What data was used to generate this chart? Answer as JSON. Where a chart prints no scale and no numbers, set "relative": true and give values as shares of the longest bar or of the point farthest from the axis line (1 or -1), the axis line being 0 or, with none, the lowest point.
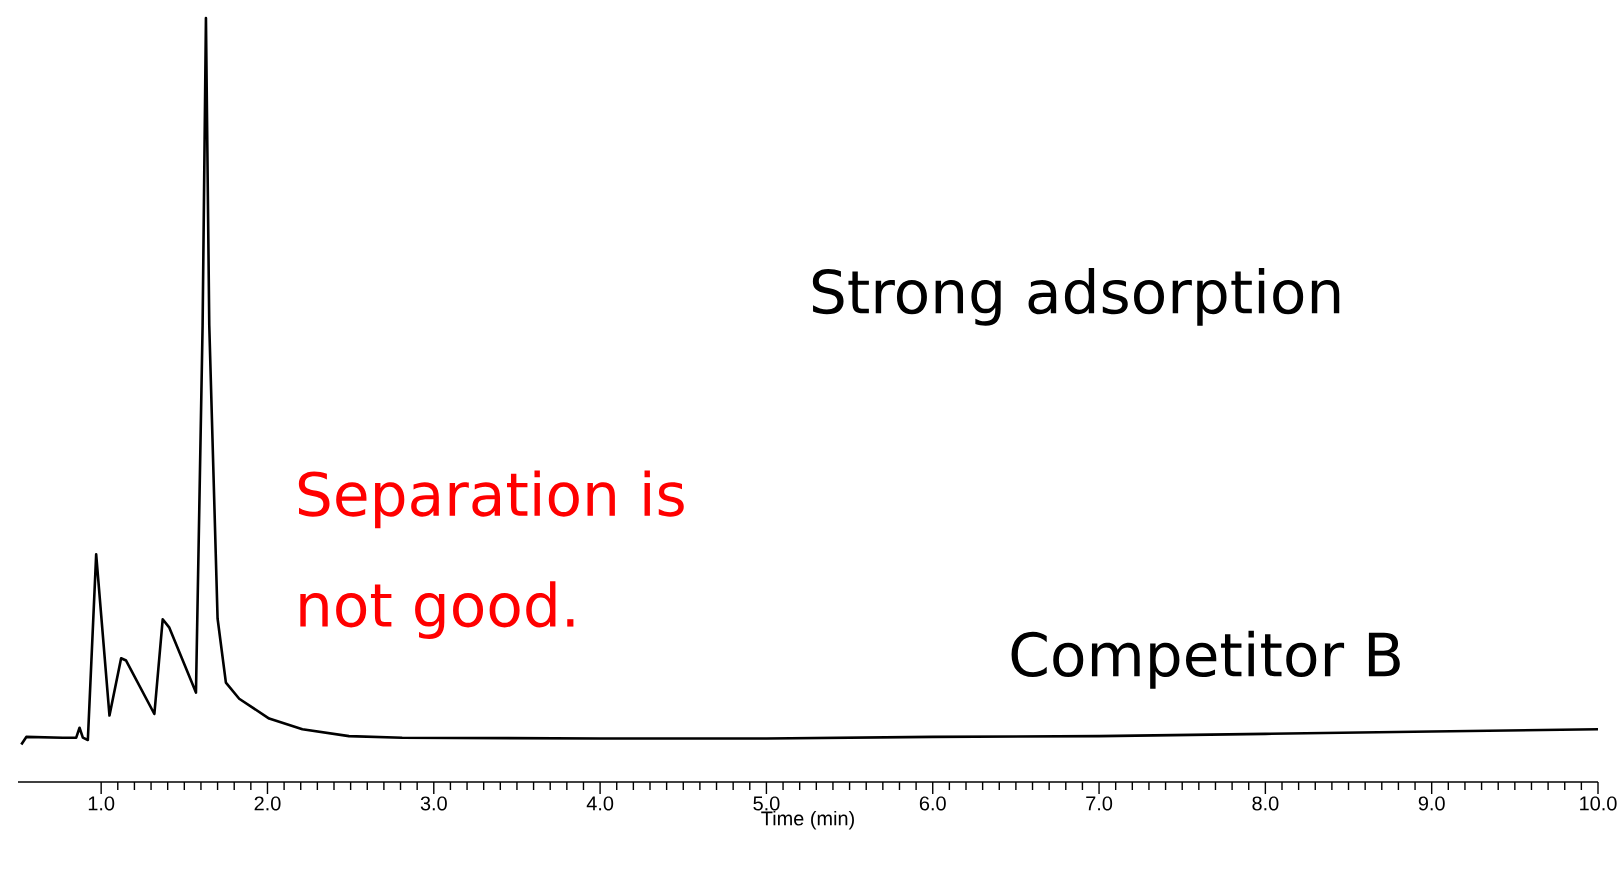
{
  "chart_data": {
    "type": "line",
    "relative": true,
    "xlabel": "Time (min)",
    "xlim": [
      0.5,
      10.0
    ],
    "xticks": [
      {
        "value": 1,
        "label": "1.0"
      },
      {
        "value": 2,
        "label": "2.0"
      },
      {
        "value": 3,
        "label": "3.0"
      },
      {
        "value": 4,
        "label": "4.0"
      },
      {
        "value": 5,
        "label": "5.0"
      },
      {
        "value": 6,
        "label": "6.0"
      },
      {
        "value": 7,
        "label": "7.0"
      },
      {
        "value": 8,
        "label": "8.0"
      },
      {
        "value": 9,
        "label": "9.0"
      },
      {
        "value": 10,
        "label": "10.0"
      }
    ],
    "x": [
      0.52,
      0.55,
      0.77,
      0.85,
      0.87,
      0.89,
      0.92,
      0.97,
      1.05,
      1.12,
      1.15,
      1.32,
      1.37,
      1.41,
      1.57,
      1.61,
      1.63,
      1.65,
      1.7,
      1.75,
      1.83,
      2.01,
      2.21,
      2.49,
      2.81,
      4.0,
      5.0,
      6.0,
      7.0,
      8.0,
      9.0,
      10.0
    ],
    "series": [
      {
        "color": "#000000",
        "values": [
          0.049,
          0.059,
          0.058,
          0.058,
          0.071,
          0.058,
          0.055,
          0.298,
          0.087,
          0.162,
          0.159,
          0.089,
          0.213,
          0.202,
          0.117,
          0.598,
          1.0,
          0.598,
          0.214,
          0.13,
          0.109,
          0.083,
          0.069,
          0.06,
          0.058,
          0.057,
          0.057,
          0.059,
          0.06,
          0.063,
          0.066,
          0.069
        ]
      }
    ],
    "annotations": [
      "Strong adsorption",
      "Separation is",
      "not good.",
      "Competitor B"
    ]
  }
}
